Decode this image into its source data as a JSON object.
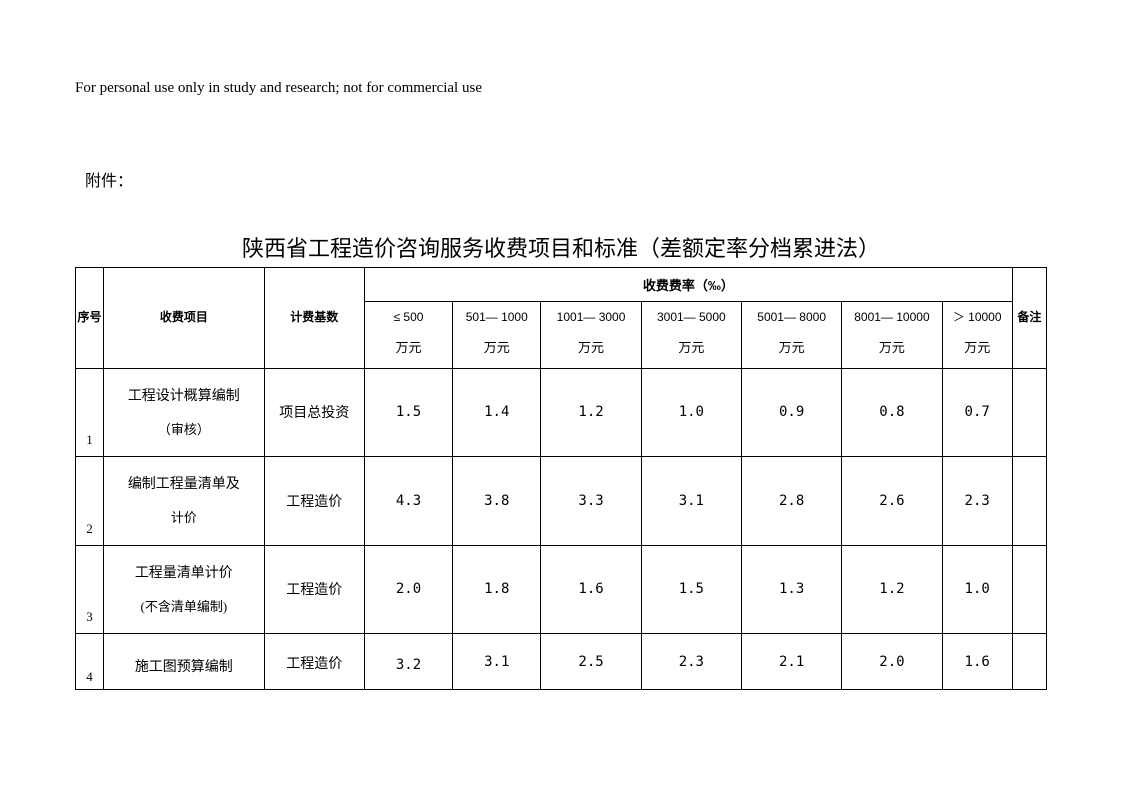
{
  "disclaimer": "For personal use only in study and research; not for commercial use",
  "attachment_label": "附件：",
  "title": "陕西省工程造价咨询服务收费项目和标准（差额定率分档累进法）",
  "headers": {
    "seq": "序号",
    "item": "收费项目",
    "base": "计费基数",
    "rate_group": "收费费率（‰）",
    "remark": "备注",
    "unit": "万元",
    "tiers": [
      "≤ 500",
      "501— 1000",
      "1001— 3000",
      "3001— 5000",
      "5001— 8000",
      "8001— 10000",
      "＞ 10000"
    ]
  },
  "rows": [
    {
      "seq": "1",
      "item_main": "工程设计概算编制",
      "item_sub": "（审核）",
      "base": "项目总投资",
      "rates": [
        "1.5",
        "1.4",
        "1.2",
        "1.0",
        "0.9",
        "0.8",
        "0.7"
      ]
    },
    {
      "seq": "2",
      "item_main": "编制工程量清单及",
      "item_sub": "计价",
      "base": "工程造价",
      "rates": [
        "4.3",
        "3.8",
        "3.3",
        "3.1",
        "2.8",
        "2.6",
        "2.3"
      ]
    },
    {
      "seq": "3",
      "item_main": "工程量清单计价",
      "item_sub": "(不含清单编制)",
      "base": "工程造价",
      "rates": [
        "2.0",
        "1.8",
        "1.6",
        "1.5",
        "1.3",
        "1.2",
        "1.0"
      ]
    },
    {
      "seq": "4",
      "item_main": "施工图预算编制",
      "item_sub": "",
      "base": "工程造价",
      "rates": [
        "3.2",
        "3.1",
        "2.5",
        "2.3",
        "2.1",
        "2.0",
        "1.6"
      ]
    }
  ],
  "style": {
    "background": "#ffffff",
    "text_color": "#000000",
    "border_color": "#000000",
    "title_fontsize": 22,
    "body_fontsize": 14,
    "header_fontsize": 12
  }
}
